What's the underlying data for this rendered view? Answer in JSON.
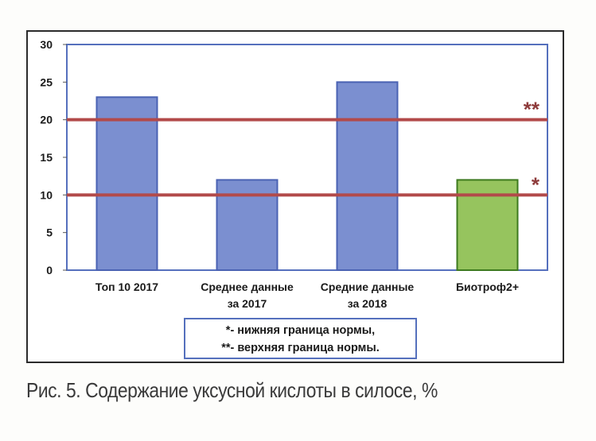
{
  "chart_data": {
    "type": "bar",
    "categories": [
      [
        "Топ 10 2017"
      ],
      [
        "Среднее данные",
        "за 2017"
      ],
      [
        "Средние данные",
        "за 2018"
      ],
      [
        "Биотроф2+"
      ]
    ],
    "values": [
      23,
      12,
      25,
      12
    ],
    "bar_colors": [
      "#7b8fd0",
      "#7b8fd0",
      "#7b8fd0",
      "#96c45e"
    ],
    "bar_stroke_colors": [
      "#4a62b3",
      "#4a62b3",
      "#4a62b3",
      "#3d7a1e"
    ],
    "ylim": [
      0,
      30
    ],
    "yticks": [
      0,
      5,
      10,
      15,
      20,
      25,
      30
    ],
    "grid": false,
    "reference_lines": [
      {
        "value": 20,
        "marker": "**",
        "color": "#b24a4a"
      },
      {
        "value": 10,
        "marker": "*",
        "color": "#b24a4a"
      }
    ],
    "legend": {
      "position": "bottom-center",
      "lines": [
        "*- нижняя граница нормы,",
        "**- верхняя граница нормы."
      ]
    },
    "plot_border_color": "#5570bd"
  },
  "caption": "Рис. 5. Содержание уксусной кислоты в силосе, %"
}
